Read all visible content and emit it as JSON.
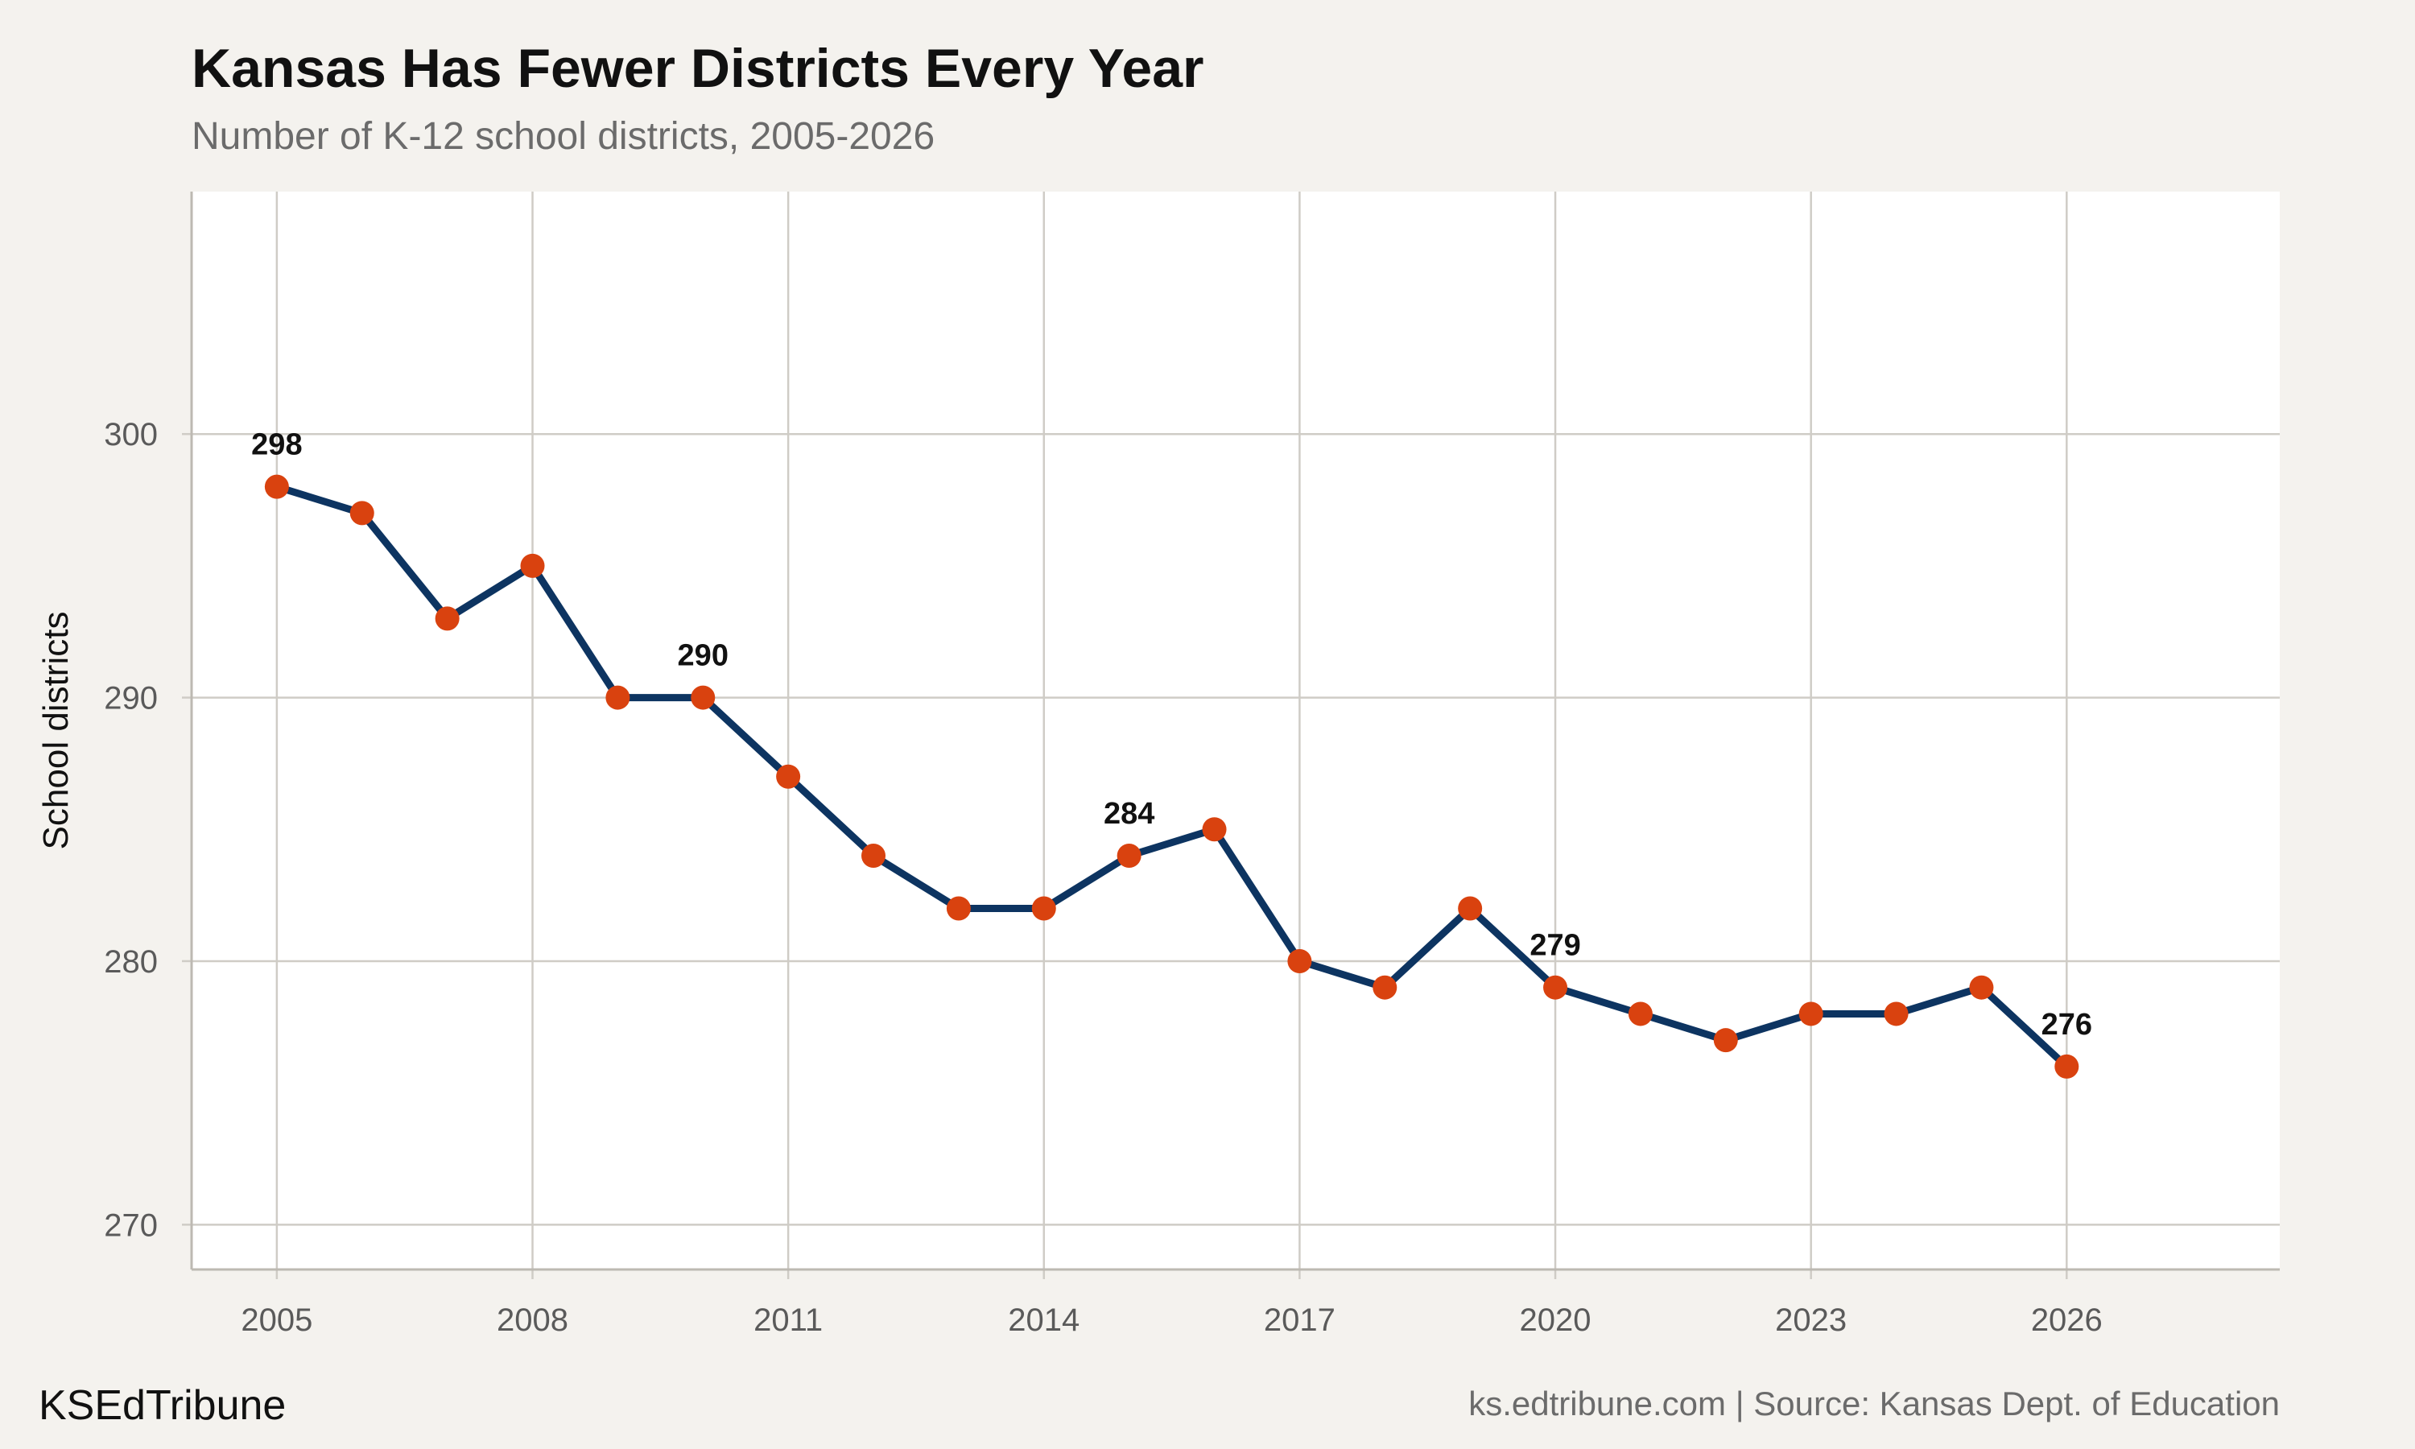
{
  "header": {
    "title": "Kansas Has Fewer Districts Every Year",
    "subtitle": "Number of K-12 school districts, 2005-2026"
  },
  "footer": {
    "brand": "KSEdTribune",
    "source": "ks.edtribune.com | Source: Kansas Dept. of Education"
  },
  "colors": {
    "line": "#0d3461",
    "marker": "#d9420f",
    "panel": "#ffffff",
    "background": "#f4f2ee",
    "grid": "#cfccc6"
  },
  "chart_data": {
    "type": "line",
    "title": "Kansas Has Fewer Districts Every Year",
    "subtitle": "Number of K-12 school districts, 2005-2026",
    "xlabel": "",
    "ylabel": "School districts",
    "xlim": [
      2004,
      2028.5
    ],
    "ylim": [
      268.3,
      309.2
    ],
    "xticks": [
      2005,
      2008,
      2011,
      2014,
      2017,
      2020,
      2023,
      2026
    ],
    "yticks": [
      270,
      280,
      290,
      300
    ],
    "grid": true,
    "legend": "none",
    "series": [
      {
        "x": [
          2005,
          2006,
          2007,
          2008,
          2009,
          2010,
          2011,
          2012,
          2013,
          2014,
          2015,
          2016,
          2017,
          2018,
          2019,
          2020,
          2021,
          2022,
          2023,
          2024,
          2025,
          2026
        ],
        "values": [
          298,
          297,
          293,
          295,
          290,
          290,
          287,
          284,
          282,
          282,
          284,
          285,
          280,
          279,
          282,
          279,
          278,
          277,
          278,
          278,
          279,
          276
        ]
      }
    ],
    "annotations": [
      {
        "x": 2005,
        "y": 298,
        "text": "298"
      },
      {
        "x": 2010,
        "y": 290,
        "text": "290"
      },
      {
        "x": 2015,
        "y": 284,
        "text": "284"
      },
      {
        "x": 2020,
        "y": 279,
        "text": "279"
      },
      {
        "x": 2026,
        "y": 276,
        "text": "276"
      }
    ]
  }
}
